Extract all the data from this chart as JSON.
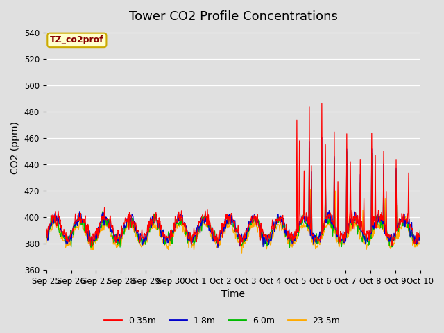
{
  "title": "Tower CO2 Profile Concentrations",
  "xlabel": "Time",
  "ylabel": "CO2 (ppm)",
  "ylim": [
    360,
    545
  ],
  "yticks": [
    360,
    380,
    400,
    420,
    440,
    460,
    480,
    500,
    520,
    540
  ],
  "xtick_labels": [
    "Sep 25",
    "Sep 26",
    "Sep 27",
    "Sep 28",
    "Sep 29",
    "Sep 30",
    "Oct 1",
    "Oct 2",
    "Oct 3",
    "Oct 4",
    "Oct 5",
    "Oct 6",
    "Oct 7",
    "Oct 8",
    "Oct 9",
    "Oct 10"
  ],
  "series_labels": [
    "0.35m",
    "1.8m",
    "6.0m",
    "23.5m"
  ],
  "series_colors": [
    "#ff0000",
    "#0000cc",
    "#00bb00",
    "#ffaa00"
  ],
  "background_color": "#e0e0e0",
  "annotation_text": "TZ_co2prof",
  "annotation_bg": "#ffffcc",
  "annotation_border": "#ccaa00",
  "title_fontsize": 13,
  "axis_fontsize": 10,
  "tick_fontsize": 8.5,
  "legend_fontsize": 9
}
